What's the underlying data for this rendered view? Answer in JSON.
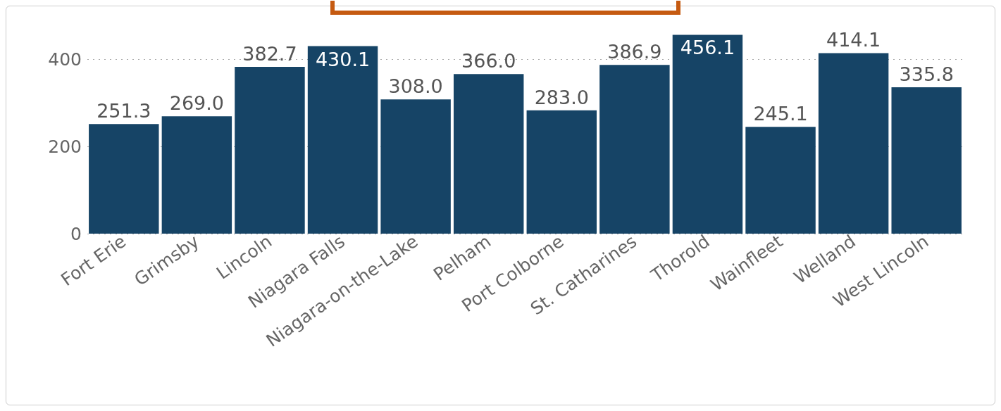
{
  "chart_data": {
    "type": "bar",
    "categories": [
      "Fort Erie",
      "Grimsby",
      "Lincoln",
      "Niagara Falls",
      "Niagara-on-the-Lake",
      "Pelham",
      "Port Colborne",
      "St. Catharines",
      "Thorold",
      "Wainfleet",
      "Welland",
      "West Lincoln"
    ],
    "values": [
      251.3,
      269.0,
      382.7,
      430.1,
      308.0,
      366.0,
      283.0,
      386.9,
      456.1,
      245.1,
      414.1,
      335.8
    ],
    "value_labels": [
      "251.3",
      "269.0",
      "382.7",
      "430.1",
      "308.0",
      "366.0",
      "283.0",
      "386.9",
      "456.1",
      "245.1",
      "414.1",
      "335.8"
    ],
    "color": "#164466",
    "ylim": [
      0,
      460
    ],
    "yticks": [
      0,
      200,
      400
    ],
    "grid": "y"
  }
}
